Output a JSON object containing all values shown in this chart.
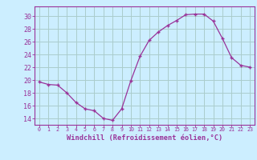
{
  "x": [
    0,
    1,
    2,
    3,
    4,
    5,
    6,
    7,
    8,
    9,
    10,
    11,
    12,
    13,
    14,
    15,
    16,
    17,
    18,
    19,
    20,
    21,
    22,
    23
  ],
  "y": [
    19.7,
    19.3,
    19.2,
    18.0,
    16.5,
    15.5,
    15.2,
    14.0,
    13.7,
    15.5,
    19.9,
    23.7,
    26.2,
    27.5,
    28.5,
    29.3,
    30.2,
    30.3,
    30.3,
    29.2,
    26.5,
    23.5,
    22.3,
    22.0
  ],
  "line_color": "#993399",
  "marker_color": "#993399",
  "bg_color": "#cceeff",
  "grid_color": "#aacccc",
  "xlabel": "Windchill (Refroidissement éolien,°C)",
  "xlabel_color": "#993399",
  "ylabel_ticks": [
    14,
    16,
    18,
    20,
    22,
    24,
    26,
    28,
    30
  ],
  "xtick_labels": [
    "0",
    "1",
    "2",
    "3",
    "4",
    "5",
    "6",
    "7",
    "8",
    "9",
    "10",
    "11",
    "12",
    "13",
    "14",
    "15",
    "16",
    "17",
    "18",
    "19",
    "20",
    "21",
    "22",
    "23"
  ],
  "ylim": [
    13.0,
    31.5
  ],
  "xlim": [
    -0.5,
    23.5
  ],
  "tick_color": "#993399",
  "axis_color": "#993399"
}
